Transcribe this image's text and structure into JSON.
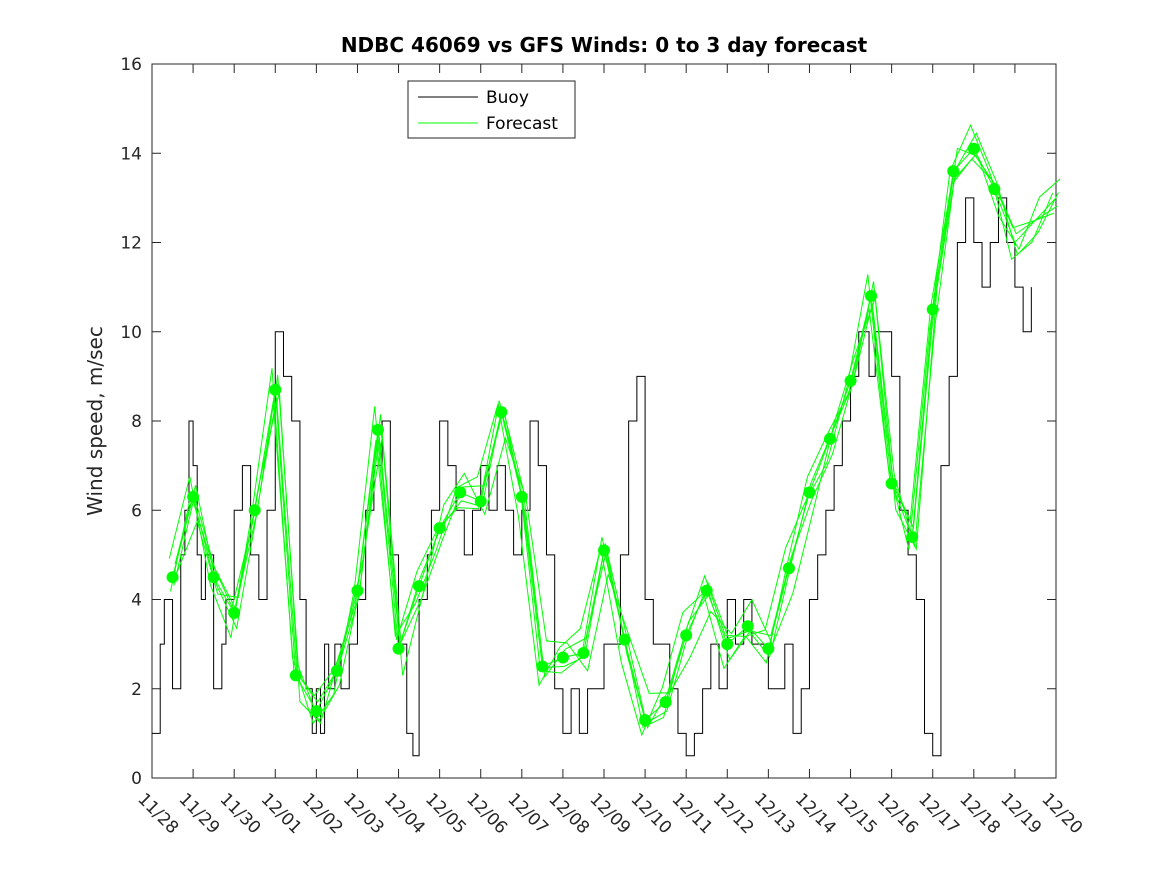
{
  "chart_data": {
    "type": "line",
    "title": "NDBC 46069 vs GFS Winds: 0 to 3 day forecast",
    "xlabel": "",
    "ylabel": "Wind speed, m/sec",
    "xlim": [
      0,
      22
    ],
    "ylim": [
      0,
      16
    ],
    "grid": false,
    "legend_placement": "top-left",
    "x_tick_labels": [
      "11/28",
      "11/29",
      "11/30",
      "12/01",
      "12/02",
      "12/03",
      "12/04",
      "12/05",
      "12/06",
      "12/07",
      "12/08",
      "12/09",
      "12/10",
      "12/11",
      "12/12",
      "12/13",
      "12/14",
      "12/15",
      "12/16",
      "12/17",
      "12/18",
      "12/19",
      "12/20"
    ],
    "y_ticks": [
      0,
      2,
      4,
      6,
      8,
      10,
      12,
      14,
      16
    ],
    "colors": {
      "buoy": "#000000",
      "forecast": "#00ff00"
    },
    "series": [
      {
        "name": "Buoy",
        "x": [
          0,
          0.2,
          0.3,
          0.5,
          0.7,
          0.8,
          0.9,
          1.0,
          1.1,
          1.2,
          1.3,
          1.5,
          1.7,
          1.8,
          2.0,
          2.2,
          2.4,
          2.6,
          2.8,
          3.0,
          3.2,
          3.4,
          3.6,
          3.75,
          3.9,
          4.0,
          4.1,
          4.2,
          4.3,
          4.45,
          4.6,
          4.8,
          5.0,
          5.2,
          5.4,
          5.6,
          5.8,
          6.0,
          6.2,
          6.35,
          6.5,
          6.7,
          6.8,
          7.0,
          7.2,
          7.4,
          7.6,
          7.8,
          8.0,
          8.2,
          8.4,
          8.6,
          8.8,
          9.0,
          9.2,
          9.4,
          9.6,
          9.8,
          10.0,
          10.2,
          10.4,
          10.6,
          10.8,
          11.0,
          11.2,
          11.4,
          11.6,
          11.8,
          12.0,
          12.2,
          12.4,
          12.6,
          12.8,
          13.0,
          13.2,
          13.4,
          13.6,
          13.8,
          14.0,
          14.2,
          14.4,
          14.6,
          14.8,
          15.0,
          15.2,
          15.4,
          15.6,
          15.8,
          16.0,
          16.2,
          16.4,
          16.6,
          16.8,
          17.0,
          17.2,
          17.3,
          17.45,
          17.6,
          17.8,
          18.0,
          18.2,
          18.4,
          18.6,
          18.8,
          19.0,
          19.2,
          19.4,
          19.6,
          19.8,
          20.0,
          20.2,
          20.4,
          20.6,
          20.8,
          21.0,
          21.2,
          21.4
        ],
        "y": [
          1,
          3,
          4,
          2,
          5,
          6,
          8,
          7,
          5,
          4,
          5,
          2,
          3,
          4,
          6,
          7,
          5,
          4,
          6,
          10,
          9,
          8,
          4,
          2,
          1,
          2,
          1,
          3,
          2,
          3,
          2,
          3,
          4,
          6,
          7,
          8,
          5,
          3,
          1,
          0.5,
          4,
          5,
          6,
          8,
          7,
          6,
          5,
          6,
          7,
          6,
          7,
          6,
          5,
          6,
          8,
          7,
          5,
          2,
          1,
          2,
          1,
          2,
          2,
          3,
          3,
          5,
          8,
          9,
          4,
          3,
          3,
          2,
          1,
          0.5,
          1,
          2,
          3,
          2,
          4,
          3,
          4,
          3,
          3,
          2,
          2,
          3,
          1,
          2,
          4,
          5,
          6,
          7,
          8,
          9,
          10,
          10,
          9,
          10,
          10,
          9,
          6,
          5,
          4,
          1,
          0.5,
          7,
          9,
          12,
          13,
          12,
          11,
          12,
          13,
          12,
          11,
          10,
          11
        ]
      },
      {
        "name": "Forecast",
        "x": [
          0.5,
          1.0,
          1.5,
          2.0,
          2.5,
          3.0,
          3.5,
          4.0,
          4.5,
          5.0,
          5.5,
          6.0,
          6.5,
          7.0,
          7.5,
          8.0,
          8.5,
          9.0,
          9.5,
          10.0,
          10.5,
          11.0,
          11.5,
          12.0,
          12.5,
          13.0,
          13.5,
          14.0,
          14.5,
          15.0,
          15.5,
          16.0,
          16.5,
          17.0,
          17.5,
          18.0,
          18.5,
          19.0,
          19.5,
          20.0,
          20.5,
          21.0,
          21.5,
          22.0
        ],
        "y": [
          4.5,
          6.3,
          4.5,
          3.7,
          6.0,
          8.7,
          2.3,
          1.5,
          2.4,
          4.2,
          7.8,
          2.9,
          4.3,
          5.6,
          6.4,
          6.2,
          8.2,
          6.3,
          2.5,
          2.7,
          2.8,
          5.1,
          3.1,
          1.3,
          1.7,
          3.2,
          4.2,
          3.0,
          3.4,
          2.9,
          4.7,
          6.4,
          7.6,
          8.9,
          10.8,
          6.6,
          5.4,
          10.5,
          13.6,
          14.1,
          13.2,
          12.0,
          12.5,
          13.0
        ]
      }
    ],
    "markers": {
      "x": [
        0.5,
        1.0,
        1.5,
        2.0,
        2.5,
        3.0,
        3.5,
        4.0,
        4.5,
        5.0,
        5.5,
        6.0,
        6.5,
        7.0,
        7.5,
        8.0,
        8.5,
        9.0,
        9.5,
        10.0,
        10.5,
        11.0,
        11.5,
        12.0,
        12.5,
        13.0,
        13.5,
        14.0,
        14.5,
        15.0,
        15.5,
        16.0,
        16.5,
        17.0,
        17.5,
        18.0,
        18.5,
        19.0,
        19.5,
        20.0,
        20.5
      ],
      "y": [
        4.5,
        6.3,
        4.5,
        3.7,
        6.0,
        8.7,
        2.3,
        1.5,
        2.4,
        4.2,
        7.8,
        2.9,
        4.3,
        5.6,
        6.4,
        6.2,
        8.2,
        6.3,
        2.5,
        2.7,
        2.8,
        5.1,
        3.1,
        1.3,
        1.7,
        3.2,
        4.2,
        3.0,
        3.4,
        2.9,
        4.7,
        6.4,
        7.6,
        8.9,
        10.8,
        6.6,
        5.4,
        10.5,
        13.6,
        14.1,
        13.2
      ]
    }
  }
}
